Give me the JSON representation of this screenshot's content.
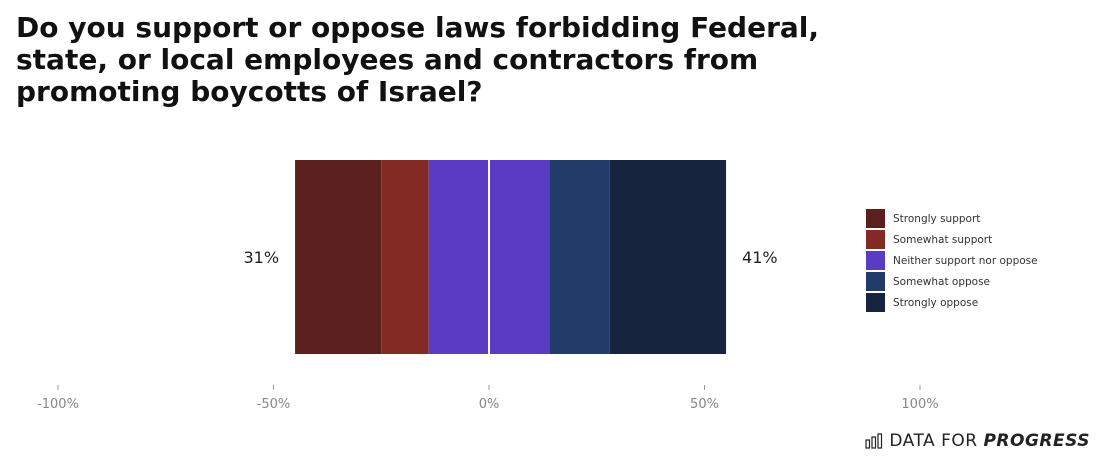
{
  "chart_data": {
    "type": "bar",
    "orientation": "horizontal-diverging-stacked",
    "title": "Do you support or oppose laws forbidding Federal, state, or local employees and contractors from promoting boycotts of Israel?",
    "categories": [
      ""
    ],
    "series": [
      {
        "name": "Strongly support",
        "values": [
          20
        ],
        "color": "#5b201e",
        "side": "negative"
      },
      {
        "name": "Somewhat support",
        "values": [
          11
        ],
        "color": "#832a25",
        "side": "negative"
      },
      {
        "name": "Neither support nor oppose",
        "values": [
          28
        ],
        "color": "#5a3cc4",
        "side": "split"
      },
      {
        "name": "Somewhat oppose",
        "values": [
          14
        ],
        "color": "#223c6a",
        "side": "positive"
      },
      {
        "name": "Strongly oppose",
        "values": [
          27
        ],
        "color": "#16243e",
        "side": "positive"
      }
    ],
    "total_labels": {
      "support": "31%",
      "oppose": "41%"
    },
    "xlim": [
      -100,
      100
    ],
    "x_ticks": [
      -100,
      -50,
      0,
      50,
      100
    ],
    "x_tick_labels": [
      "-100%",
      "-50%",
      "0%",
      "50%",
      "100%"
    ],
    "grid": false,
    "legend_position": "right"
  },
  "brand": {
    "prefix": "DATA FOR",
    "emphasis": "PROGRESS"
  }
}
